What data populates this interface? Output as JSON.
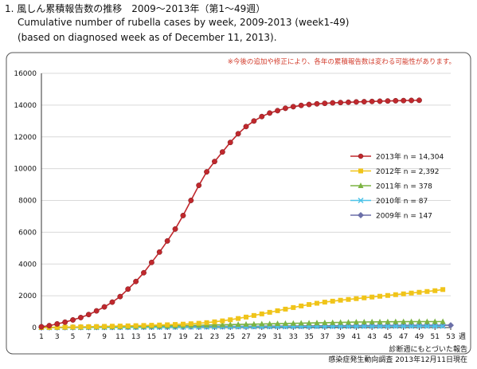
{
  "header": {
    "line1": "1.  風しん累積報告数の推移　2009～2013年（第1～49週）",
    "line2": "Cumulative number of rubella cases by week, 2009-2013 (week1-49)",
    "line3": "(based on diagnosed week as of  December 11, 2013)."
  },
  "chart_data": {
    "type": "line",
    "note": "※今後の追加や修正により、各年の累積報告数は変わる可能性があります。",
    "xlabel": "週",
    "x_ticks": [
      "1",
      "3",
      "5",
      "7",
      "9",
      "11",
      "13",
      "15",
      "17",
      "19",
      "21",
      "23",
      "25",
      "27",
      "29",
      "31",
      "33",
      "35",
      "37",
      "39",
      "41",
      "43",
      "45",
      "47",
      "49",
      "51",
      "53"
    ],
    "y_ticks": [
      "0",
      "2000",
      "4000",
      "6000",
      "8000",
      "10000",
      "12000",
      "14000",
      "16000"
    ],
    "ylim": [
      0,
      16000
    ],
    "xlim": [
      1,
      53
    ],
    "grid": true,
    "legend_position": "right",
    "series": [
      {
        "name": "2013年 n = 14,304",
        "color": "#c0282d",
        "marker": "circle",
        "x": [
          1,
          2,
          3,
          4,
          5,
          6,
          7,
          8,
          9,
          10,
          11,
          12,
          13,
          14,
          15,
          16,
          17,
          18,
          19,
          20,
          21,
          22,
          23,
          24,
          25,
          26,
          27,
          28,
          29,
          30,
          31,
          32,
          33,
          34,
          35,
          36,
          37,
          38,
          39,
          40,
          41,
          42,
          43,
          44,
          45,
          46,
          47,
          48,
          49
        ],
        "y": [
          50,
          120,
          230,
          340,
          480,
          630,
          820,
          1050,
          1300,
          1600,
          1950,
          2420,
          2900,
          3450,
          4100,
          4750,
          5450,
          6200,
          7050,
          8000,
          8950,
          9800,
          10450,
          11050,
          11650,
          12200,
          12650,
          13000,
          13280,
          13500,
          13650,
          13800,
          13900,
          13980,
          14040,
          14080,
          14110,
          14140,
          14160,
          14180,
          14200,
          14215,
          14230,
          14245,
          14260,
          14275,
          14285,
          14295,
          14304
        ]
      },
      {
        "name": "2012年 n = 2,392",
        "color": "#f0c419",
        "marker": "square",
        "x": [
          1,
          2,
          3,
          4,
          5,
          6,
          7,
          8,
          9,
          10,
          11,
          12,
          13,
          14,
          15,
          16,
          17,
          18,
          19,
          20,
          21,
          22,
          23,
          24,
          25,
          26,
          27,
          28,
          29,
          30,
          31,
          32,
          33,
          34,
          35,
          36,
          37,
          38,
          39,
          40,
          41,
          42,
          43,
          44,
          45,
          46,
          47,
          48,
          49,
          50,
          51,
          52
        ],
        "y": [
          5,
          12,
          20,
          28,
          36,
          45,
          55,
          65,
          75,
          85,
          95,
          108,
          120,
          132,
          145,
          160,
          175,
          195,
          215,
          240,
          270,
          310,
          360,
          420,
          490,
          570,
          660,
          760,
          860,
          960,
          1060,
          1160,
          1260,
          1360,
          1450,
          1530,
          1600,
          1660,
          1720,
          1770,
          1820,
          1870,
          1920,
          1970,
          2020,
          2070,
          2120,
          2170,
          2220,
          2270,
          2320,
          2392
        ]
      },
      {
        "name": "2011年 n = 378",
        "color": "#7cb342",
        "marker": "triangle",
        "x": [
          1,
          2,
          3,
          4,
          5,
          6,
          7,
          8,
          9,
          10,
          11,
          12,
          13,
          14,
          15,
          16,
          17,
          18,
          19,
          20,
          21,
          22,
          23,
          24,
          25,
          26,
          27,
          28,
          29,
          30,
          31,
          32,
          33,
          34,
          35,
          36,
          37,
          38,
          39,
          40,
          41,
          42,
          43,
          44,
          45,
          46,
          47,
          48,
          49,
          50,
          51,
          52
        ],
        "y": [
          2,
          5,
          8,
          12,
          16,
          20,
          25,
          30,
          36,
          42,
          50,
          58,
          66,
          75,
          85,
          95,
          105,
          115,
          125,
          135,
          145,
          155,
          165,
          175,
          185,
          195,
          205,
          215,
          225,
          235,
          245,
          255,
          265,
          275,
          285,
          295,
          305,
          315,
          325,
          335,
          345,
          350,
          355,
          360,
          365,
          368,
          371,
          373,
          375,
          376,
          377,
          378
        ]
      },
      {
        "name": "2010年 n = 87",
        "color": "#4dc3e8",
        "marker": "cross",
        "x": [
          1,
          2,
          3,
          4,
          5,
          6,
          7,
          8,
          9,
          10,
          11,
          12,
          13,
          14,
          15,
          16,
          17,
          18,
          19,
          20,
          21,
          22,
          23,
          24,
          25,
          26,
          27,
          28,
          29,
          30,
          31,
          32,
          33,
          34,
          35,
          36,
          37,
          38,
          39,
          40,
          41,
          42,
          43,
          44,
          45,
          46,
          47,
          48,
          49,
          50,
          51,
          52
        ],
        "y": [
          1,
          2,
          3,
          4,
          5,
          6,
          7,
          8,
          9,
          10,
          12,
          14,
          16,
          18,
          20,
          22,
          24,
          26,
          28,
          30,
          32,
          34,
          36,
          38,
          40,
          42,
          44,
          46,
          48,
          50,
          52,
          54,
          56,
          58,
          60,
          62,
          64,
          66,
          68,
          70,
          72,
          74,
          76,
          78,
          79,
          80,
          81,
          82,
          83,
          84,
          86,
          87
        ]
      },
      {
        "name": "2009年 n = 147",
        "color": "#6b6fa8",
        "marker": "diamond",
        "x": [
          1,
          2,
          3,
          4,
          5,
          6,
          7,
          8,
          9,
          10,
          11,
          12,
          13,
          14,
          15,
          16,
          17,
          18,
          19,
          20,
          21,
          22,
          23,
          24,
          25,
          26,
          27,
          28,
          29,
          30,
          31,
          32,
          33,
          34,
          35,
          36,
          37,
          38,
          39,
          40,
          41,
          42,
          43,
          44,
          45,
          46,
          47,
          48,
          49,
          50,
          51,
          52,
          53
        ],
        "y": [
          2,
          4,
          7,
          10,
          13,
          16,
          19,
          22,
          25,
          28,
          31,
          34,
          37,
          40,
          43,
          46,
          49,
          52,
          55,
          58,
          61,
          64,
          67,
          70,
          73,
          76,
          79,
          82,
          85,
          88,
          91,
          94,
          97,
          100,
          103,
          106,
          109,
          112,
          115,
          118,
          121,
          124,
          127,
          130,
          133,
          136,
          139,
          141,
          143,
          144,
          145,
          146,
          147
        ]
      }
    ]
  },
  "footer": {
    "line1": "診断週にもとづいた報告",
    "line2": "感染症発生動向調査 2013年12月11日現在"
  }
}
